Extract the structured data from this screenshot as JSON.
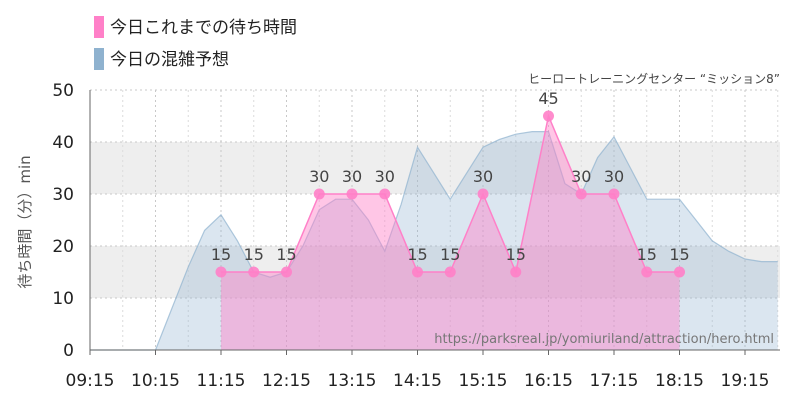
{
  "legend": {
    "today": "今日これまでの待ち時間",
    "forecast": "今日の混雑予想"
  },
  "subtitle": "ヒーロートレーニングセンター “ミッション8”",
  "credit": "https://parksreal.jp/yomiuriland/attraction/hero.html",
  "colors": {
    "today": "#ff80c8",
    "forecast": "#8fb2cf",
    "band": "#eeeeee"
  },
  "chart_data": {
    "type": "area",
    "ylabel": "待ち時間（分）min",
    "ylim": [
      0,
      50
    ],
    "yticks": [
      0,
      10,
      20,
      30,
      40,
      50
    ],
    "xticks": [
      "09:15",
      "10:15",
      "11:15",
      "12:15",
      "13:15",
      "14:15",
      "15:15",
      "16:15",
      "17:15",
      "18:15",
      "19:15"
    ],
    "grid": true,
    "legend_position": "top-left",
    "series": [
      {
        "name": "今日これまでの待ち時間",
        "type": "area-line-markers",
        "x": [
          "11:15",
          "11:45",
          "12:15",
          "12:45",
          "13:15",
          "13:45",
          "14:15",
          "14:45",
          "15:15",
          "15:45",
          "16:15",
          "16:45",
          "17:15",
          "17:45",
          "18:15"
        ],
        "values": [
          15,
          15,
          15,
          30,
          30,
          30,
          15,
          15,
          30,
          15,
          45,
          30,
          30,
          15,
          15
        ]
      },
      {
        "name": "今日の混雑予想",
        "type": "area",
        "x": [
          "09:15",
          "09:45",
          "10:15",
          "10:30",
          "10:45",
          "11:00",
          "11:15",
          "11:30",
          "11:45",
          "12:00",
          "12:15",
          "12:30",
          "12:45",
          "13:00",
          "13:15",
          "13:30",
          "13:45",
          "14:00",
          "14:15",
          "14:30",
          "14:45",
          "15:00",
          "15:15",
          "15:30",
          "15:45",
          "16:00",
          "16:15",
          "16:30",
          "16:45",
          "17:00",
          "17:15",
          "17:30",
          "17:45",
          "18:00",
          "18:15",
          "18:30",
          "18:45",
          "19:00",
          "19:15",
          "19:30",
          "19:45"
        ],
        "values": [
          0,
          0,
          0,
          8,
          16,
          23,
          26,
          21,
          15,
          14,
          15,
          20,
          27,
          29,
          29,
          25,
          19,
          28,
          39,
          34,
          29,
          34,
          39,
          40.5,
          41.5,
          42,
          42,
          32,
          30,
          37,
          41,
          35,
          29,
          29,
          29,
          25,
          21,
          19,
          17.5,
          17,
          17
        ]
      }
    ]
  }
}
